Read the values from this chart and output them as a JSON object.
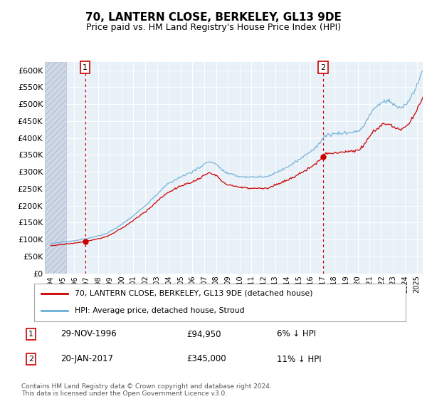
{
  "title": "70, LANTERN CLOSE, BERKELEY, GL13 9DE",
  "subtitle": "Price paid vs. HM Land Registry's House Price Index (HPI)",
  "xlim_start": 1993.5,
  "xlim_end": 2025.5,
  "ylim": [
    0,
    625000
  ],
  "yticks": [
    0,
    50000,
    100000,
    150000,
    200000,
    250000,
    300000,
    350000,
    400000,
    450000,
    500000,
    550000,
    600000
  ],
  "ytick_labels": [
    "£0",
    "£50K",
    "£100K",
    "£150K",
    "£200K",
    "£250K",
    "£300K",
    "£350K",
    "£400K",
    "£450K",
    "£500K",
    "£550K",
    "£600K"
  ],
  "purchase1_date": 1996.91,
  "purchase1_price": 94950,
  "purchase2_date": 2017.05,
  "purchase2_price": 345000,
  "purchase1_text": "29-NOV-1996",
  "purchase1_price_text": "£94,950",
  "purchase1_pct": "6% ↓ HPI",
  "purchase2_text": "20-JAN-2017",
  "purchase2_price_text": "£345,000",
  "purchase2_pct": "11% ↓ HPI",
  "hpi_line_color": "#6baed6",
  "price_line_color": "#cc0000",
  "vline_color": "#cc0000",
  "background_color": "#e8f0f8",
  "legend_label1": "70, LANTERN CLOSE, BERKELEY, GL13 9DE (detached house)",
  "legend_label2": "HPI: Average price, detached house, Stroud",
  "footer": "Contains HM Land Registry data © Crown copyright and database right 2024.\nThis data is licensed under the Open Government Licence v3.0.",
  "xticks": [
    1994,
    1995,
    1996,
    1997,
    1998,
    1999,
    2000,
    2001,
    2002,
    2003,
    2004,
    2005,
    2006,
    2007,
    2008,
    2009,
    2010,
    2011,
    2012,
    2013,
    2014,
    2015,
    2016,
    2017,
    2018,
    2019,
    2020,
    2021,
    2022,
    2023,
    2024,
    2025
  ]
}
